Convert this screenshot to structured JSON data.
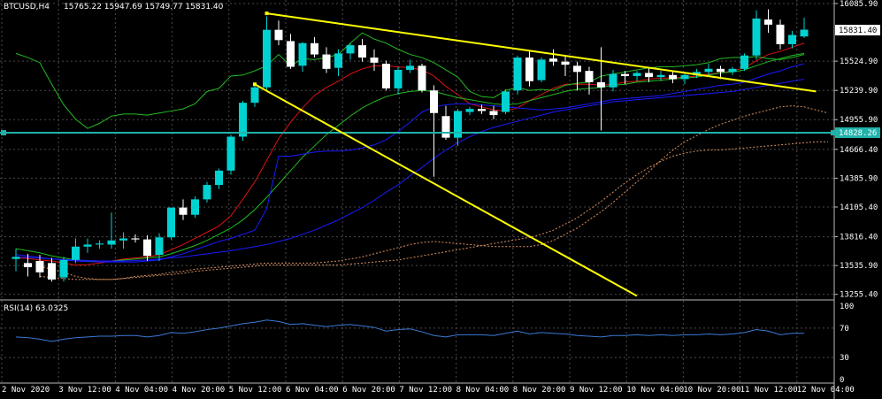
{
  "header": {
    "symbol": "BTCUSD,H4",
    "ohlc": "15765.22 15947.69 15749.77 15831.40"
  },
  "rsi_header": "RSI(14) 63.0325",
  "price_badges": {
    "current": "15831.40",
    "level": "14828.26"
  },
  "colors": {
    "background": "#000000",
    "grid": "#4a4a4a",
    "bull_candle": "#00d2d2",
    "bear_candle": "#ffffff",
    "trendline": "#ffff00",
    "horizontal_level": "#20b2aa",
    "ma_red": "#dd1111",
    "ma_green": "#22bb22",
    "ma_blue": "#1a1aff",
    "rsi_line": "#3a7bd5",
    "ichimoku": "#d89060"
  },
  "chart_data": [
    {
      "type": "line",
      "title": "BTCUSD,H4",
      "y_ticks": [
        "16085.90",
        "15524.90",
        "15239.90",
        "14955.90",
        "14666.40",
        "14385.90",
        "14105.40",
        "13816.40",
        "13535.90",
        "13255.40"
      ],
      "y_tick_values": [
        16085.9,
        15524.9,
        15239.9,
        14955.9,
        14666.4,
        14385.9,
        14105.4,
        13816.4,
        13535.9,
        13255.4
      ],
      "x_ticks": [
        "2 Nov 2020",
        "3 Nov 12:00",
        "4 Nov 04:00",
        "4 Nov 20:00",
        "5 Nov 12:00",
        "6 Nov 04:00",
        "6 Nov 20:00",
        "7 Nov 12:00",
        "8 Nov 04:00",
        "8 Nov 20:00",
        "9 Nov 12:00",
        "10 Nov 04:00",
        "10 Nov 20:00",
        "11 Nov 12:00",
        "12 Nov 04:00"
      ],
      "ylim": [
        13210,
        16120
      ],
      "grid": true,
      "candles": [
        {
          "o": 13600,
          "h": 13700,
          "l": 13480,
          "c": 13620
        },
        {
          "o": 13560,
          "h": 13650,
          "l": 13430,
          "c": 13520
        },
        {
          "o": 13580,
          "h": 13640,
          "l": 13420,
          "c": 13470
        },
        {
          "o": 13560,
          "h": 13610,
          "l": 13380,
          "c": 13400
        },
        {
          "o": 13420,
          "h": 13620,
          "l": 13380,
          "c": 13590
        },
        {
          "o": 13590,
          "h": 13800,
          "l": 13560,
          "c": 13720
        },
        {
          "o": 13720,
          "h": 13800,
          "l": 13660,
          "c": 13740
        },
        {
          "o": 13740,
          "h": 13780,
          "l": 13700,
          "c": 13750
        },
        {
          "o": 13740,
          "h": 14050,
          "l": 13700,
          "c": 13780
        },
        {
          "o": 13780,
          "h": 13860,
          "l": 13700,
          "c": 13800
        },
        {
          "o": 13800,
          "h": 13840,
          "l": 13760,
          "c": 13790
        },
        {
          "o": 13790,
          "h": 13830,
          "l": 13580,
          "c": 13630
        },
        {
          "o": 13640,
          "h": 13850,
          "l": 13580,
          "c": 13810
        },
        {
          "o": 13810,
          "h": 14100,
          "l": 13790,
          "c": 14100
        },
        {
          "o": 14100,
          "h": 14180,
          "l": 13980,
          "c": 14030
        },
        {
          "o": 14030,
          "h": 14210,
          "l": 14000,
          "c": 14180
        },
        {
          "o": 14180,
          "h": 14350,
          "l": 14150,
          "c": 14320
        },
        {
          "o": 14320,
          "h": 14480,
          "l": 14280,
          "c": 14460
        },
        {
          "o": 14460,
          "h": 14810,
          "l": 14420,
          "c": 14790
        },
        {
          "o": 14790,
          "h": 15140,
          "l": 14750,
          "c": 15120
        },
        {
          "o": 15120,
          "h": 15300,
          "l": 15080,
          "c": 15270
        },
        {
          "o": 15270,
          "h": 15960,
          "l": 15240,
          "c": 15830
        },
        {
          "o": 15830,
          "h": 15920,
          "l": 15680,
          "c": 15730
        },
        {
          "o": 15720,
          "h": 15790,
          "l": 15450,
          "c": 15470
        },
        {
          "o": 15480,
          "h": 15710,
          "l": 15420,
          "c": 15700
        },
        {
          "o": 15700,
          "h": 15760,
          "l": 15560,
          "c": 15590
        },
        {
          "o": 15590,
          "h": 15660,
          "l": 15410,
          "c": 15450
        },
        {
          "o": 15460,
          "h": 15640,
          "l": 15380,
          "c": 15600
        },
        {
          "o": 15600,
          "h": 15700,
          "l": 15540,
          "c": 15680
        },
        {
          "o": 15680,
          "h": 15740,
          "l": 15520,
          "c": 15560
        },
        {
          "o": 15560,
          "h": 15640,
          "l": 15430,
          "c": 15510
        },
        {
          "o": 15500,
          "h": 15530,
          "l": 15240,
          "c": 15260
        },
        {
          "o": 15260,
          "h": 15470,
          "l": 15200,
          "c": 15440
        },
        {
          "o": 15440,
          "h": 15540,
          "l": 15410,
          "c": 15480
        },
        {
          "o": 15480,
          "h": 15500,
          "l": 15220,
          "c": 15240
        },
        {
          "o": 15240,
          "h": 15290,
          "l": 14400,
          "c": 15020
        },
        {
          "o": 14990,
          "h": 15090,
          "l": 14760,
          "c": 14780
        },
        {
          "o": 14780,
          "h": 15060,
          "l": 14700,
          "c": 15040
        },
        {
          "o": 15030,
          "h": 15080,
          "l": 15000,
          "c": 15060
        },
        {
          "o": 15060,
          "h": 15100,
          "l": 15010,
          "c": 15040
        },
        {
          "o": 15040,
          "h": 15090,
          "l": 14960,
          "c": 15000
        },
        {
          "o": 15030,
          "h": 15250,
          "l": 15010,
          "c": 15230
        },
        {
          "o": 15240,
          "h": 15580,
          "l": 15200,
          "c": 15560
        },
        {
          "o": 15560,
          "h": 15620,
          "l": 15280,
          "c": 15330
        },
        {
          "o": 15340,
          "h": 15560,
          "l": 15320,
          "c": 15540
        },
        {
          "o": 15550,
          "h": 15640,
          "l": 15480,
          "c": 15520
        },
        {
          "o": 15520,
          "h": 15580,
          "l": 15380,
          "c": 15490
        },
        {
          "o": 15480,
          "h": 15520,
          "l": 15240,
          "c": 15420
        },
        {
          "o": 15430,
          "h": 15470,
          "l": 15200,
          "c": 15320
        },
        {
          "o": 15320,
          "h": 15660,
          "l": 14850,
          "c": 15270
        },
        {
          "o": 15270,
          "h": 15440,
          "l": 15230,
          "c": 15400
        },
        {
          "o": 15400,
          "h": 15430,
          "l": 15300,
          "c": 15380
        },
        {
          "o": 15380,
          "h": 15430,
          "l": 15330,
          "c": 15410
        },
        {
          "o": 15410,
          "h": 15460,
          "l": 15320,
          "c": 15370
        },
        {
          "o": 15370,
          "h": 15430,
          "l": 15330,
          "c": 15390
        },
        {
          "o": 15390,
          "h": 15420,
          "l": 15310,
          "c": 15350
        },
        {
          "o": 15350,
          "h": 15400,
          "l": 15300,
          "c": 15390
        },
        {
          "o": 15390,
          "h": 15450,
          "l": 15360,
          "c": 15420
        },
        {
          "o": 15420,
          "h": 15500,
          "l": 15390,
          "c": 15450
        },
        {
          "o": 15450,
          "h": 15480,
          "l": 15350,
          "c": 15420
        },
        {
          "o": 15420,
          "h": 15470,
          "l": 15390,
          "c": 15450
        },
        {
          "o": 15450,
          "h": 15600,
          "l": 15430,
          "c": 15580
        },
        {
          "o": 15580,
          "h": 16020,
          "l": 15540,
          "c": 15940
        },
        {
          "o": 15930,
          "h": 16030,
          "l": 15800,
          "c": 15880
        },
        {
          "o": 15880,
          "h": 15930,
          "l": 15640,
          "c": 15690
        },
        {
          "o": 15690,
          "h": 15820,
          "l": 15650,
          "c": 15780
        },
        {
          "o": 15765.22,
          "h": 15947.69,
          "l": 15749.77,
          "c": 15831.4
        }
      ],
      "series": [
        {
          "color": "ma_red",
          "values": [
            13610,
            13605,
            13590,
            13580,
            13560,
            13540,
            13545,
            13560,
            13580,
            13600,
            13610,
            13620,
            13640,
            13690,
            13740,
            13800,
            13860,
            13920,
            14020,
            14180,
            14350,
            14560,
            14770,
            14930,
            15070,
            15190,
            15270,
            15330,
            15400,
            15450,
            15480,
            15480,
            15470,
            15460,
            15440,
            15380,
            15280,
            15200,
            15110,
            15080,
            15050,
            15040,
            15070,
            15140,
            15200,
            15260,
            15300,
            15300,
            15300,
            15290,
            15300,
            15320,
            15330,
            15350,
            15360,
            15360,
            15370,
            15380,
            15400,
            15410,
            15430,
            15460,
            15530,
            15590,
            15620,
            15660,
            15700
          ]
        },
        {
          "color": "ma_green",
          "values": [
            13700,
            13680,
            13660,
            13630,
            13610,
            13590,
            13580,
            13580,
            13580,
            13590,
            13600,
            13610,
            13620,
            13650,
            13690,
            13730,
            13780,
            13840,
            13900,
            13980,
            14080,
            14200,
            14330,
            14460,
            14590,
            14700,
            14810,
            14900,
            14990,
            15070,
            15130,
            15180,
            15210,
            15230,
            15240,
            15230,
            15200,
            15170,
            15150,
            15130,
            15110,
            15100,
            15110,
            15140,
            15170,
            15200,
            15230,
            15250,
            15260,
            15270,
            15290,
            15300,
            15320,
            15330,
            15340,
            15350,
            15360,
            15370,
            15390,
            15410,
            15420,
            15440,
            15480,
            15520,
            15550,
            15580,
            15600
          ]
        },
        {
          "color": "ma_green_lagging",
          "values": [
            15600,
            15560,
            15510,
            15300,
            15100,
            14960,
            14870,
            14920,
            14990,
            15010,
            15010,
            15000,
            15020,
            15040,
            15060,
            15110,
            15230,
            15260,
            15380,
            15390,
            15430,
            15480,
            15590,
            15480,
            15550,
            15540,
            15560,
            15590,
            15700,
            15800,
            15740,
            15700,
            15640,
            15590,
            15560,
            15510,
            15440,
            15370,
            15230,
            15180,
            15170,
            15240,
            15270,
            15240,
            15250,
            15240,
            15290,
            15310,
            15320,
            15380,
            15400,
            15420,
            15440,
            15460,
            15470,
            15470,
            15480,
            15490,
            15510,
            15550,
            15560,
            15560,
            15570,
            15550,
            15540,
            15560,
            15590
          ]
        },
        {
          "color": "ma_blue",
          "values": [
            13640,
            13630,
            13615,
            13600,
            13590,
            13580,
            13575,
            13570,
            13570,
            13570,
            13570,
            13580,
            13590,
            13620,
            13650,
            13690,
            13730,
            13770,
            13800,
            13840,
            13880,
            14090,
            14600,
            14600,
            14620,
            14640,
            14650,
            14650,
            14660,
            14680,
            14710,
            14760,
            14840,
            14930,
            15030,
            15080,
            15100,
            15110,
            15110,
            15100,
            15090,
            15080,
            15070,
            15060,
            15050,
            15060,
            15070,
            15090,
            15110,
            15130,
            15150,
            15160,
            15170,
            15180,
            15190,
            15210,
            15230,
            15250,
            15270,
            15290,
            15300,
            15320,
            15360,
            15400,
            15430,
            15470,
            15500
          ]
        },
        {
          "color": "ma_blue_slow",
          "values": [
            13620,
            13615,
            13608,
            13600,
            13595,
            13590,
            13585,
            13580,
            13580,
            13580,
            13585,
            13590,
            13600,
            13610,
            13620,
            13635,
            13650,
            13665,
            13680,
            13700,
            13720,
            13740,
            13770,
            13800,
            13840,
            13880,
            13930,
            13980,
            14040,
            14100,
            14170,
            14250,
            14320,
            14410,
            14490,
            14580,
            14660,
            14730,
            14790,
            14840,
            14880,
            14910,
            14940,
            14970,
            15000,
            15030,
            15050,
            15070,
            15090,
            15110,
            15130,
            15140,
            15150,
            15160,
            15170,
            15180,
            15190,
            15200,
            15210,
            15220,
            15230,
            15250,
            15270,
            15290,
            15310,
            15330,
            15350
          ]
        },
        {
          "color": "ichimoku_a",
          "values": [
            13530,
            13500,
            13470,
            13430,
            13410,
            13400,
            13400,
            13410,
            13430,
            13440,
            13450,
            13470,
            13480,
            13500,
            13510,
            13520,
            13530,
            13540,
            13550,
            13560,
            13560,
            13560,
            13560,
            13560,
            13570,
            13580,
            13600,
            13620,
            13650,
            13680,
            13710,
            13740,
            13760,
            13770,
            13760,
            13750,
            13740,
            13730,
            13720,
            13720,
            13720,
            13720,
            13740,
            13780,
            13840,
            13900,
            13980,
            14060,
            14150,
            14250,
            14350,
            14450,
            14560,
            14660,
            14740,
            14800,
            14860,
            14910,
            14950,
            14990,
            15020,
            15050,
            15080,
            15090,
            15080,
            15050,
            15020
          ]
        },
        {
          "color": "ichimoku_b",
          "values": [
            13430,
            13420,
            13410,
            13400,
            13400,
            13400,
            13400,
            13410,
            13420,
            13430,
            13440,
            13450,
            13460,
            13480,
            13490,
            13500,
            13510,
            13520,
            13530,
            13540,
            13540,
            13540,
            13540,
            13540,
            13540,
            13540,
            13550,
            13560,
            13570,
            13580,
            13590,
            13610,
            13630,
            13650,
            13670,
            13690,
            13710,
            13730,
            13750,
            13770,
            13790,
            13810,
            13840,
            13880,
            13940,
            14000,
            14080,
            14160,
            14250,
            14340,
            14420,
            14490,
            14550,
            14600,
            14630,
            14650,
            14660,
            14660,
            14670,
            14680,
            14690,
            14700,
            14710,
            14720,
            14730,
            14740,
            14740
          ]
        }
      ],
      "horizontal_level": 14828.26,
      "trendlines": [
        {
          "from": {
            "i": 21,
            "p": 15990
          },
          "to": {
            "i": 67,
            "p": 15230
          }
        },
        {
          "from": {
            "i": 20,
            "p": 15300
          },
          "to": {
            "i": 52,
            "p": 13240
          }
        }
      ]
    },
    {
      "type": "line",
      "title": "RSI(14) 63.0325",
      "y_ticks": [
        "100",
        "70",
        "30",
        "0"
      ],
      "y_tick_values": [
        100,
        70,
        30,
        0
      ],
      "ylim": [
        0,
        100
      ],
      "values": [
        58,
        57,
        55,
        52,
        55,
        57,
        58,
        59,
        59,
        60,
        60,
        58,
        60,
        64,
        63,
        65,
        68,
        70,
        73,
        76,
        78,
        81,
        79,
        75,
        76,
        74,
        72,
        74,
        75,
        73,
        71,
        66,
        68,
        69,
        65,
        60,
        58,
        61,
        61,
        61,
        60,
        63,
        66,
        62,
        64,
        63,
        62,
        60,
        59,
        58,
        60,
        60,
        61,
        60,
        61,
        60,
        61,
        61,
        62,
        61,
        62,
        64,
        68,
        66,
        61,
        63,
        63
      ]
    }
  ]
}
